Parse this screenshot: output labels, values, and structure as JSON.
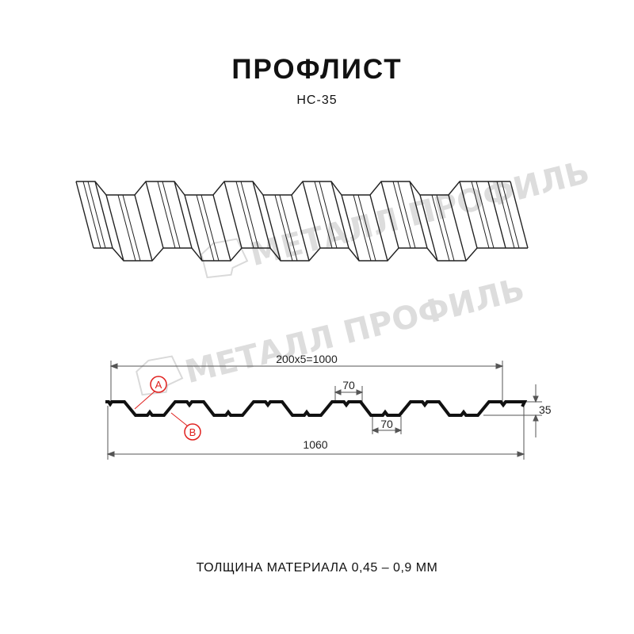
{
  "header": {
    "title": "ПРОФЛИСТ",
    "model": "НС-35"
  },
  "watermark": {
    "text": "МЕТАЛЛ ПРОФИЛЬ"
  },
  "dimensions": {
    "pitch_total": "200x5=1000",
    "top_flat": "70",
    "bottom_flat": "70",
    "height": "35",
    "full_width": "1060"
  },
  "callouts": {
    "a": "A",
    "b": "B"
  },
  "footer": {
    "thickness": "ТОЛЩИНА МАТЕРИАЛА 0,45 – 0,9 ММ"
  },
  "colors": {
    "line": "#1a1a1a",
    "callout": "#e0201e",
    "dimension": "#555555"
  }
}
